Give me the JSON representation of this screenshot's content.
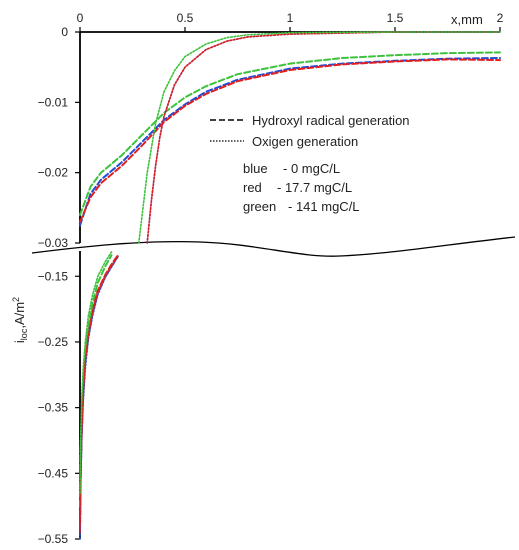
{
  "chart_data": {
    "type": "line",
    "title": "",
    "xlabel": "x,mm",
    "ylabel_main": "i",
    "ylabel_sub": "loc",
    "ylabel_tail": ",A/m",
    "ylabel_sup": "2",
    "x_ticks": [
      "0",
      "0.5",
      "1",
      "1.5",
      "2"
    ],
    "y_ticks_upper": [
      "0",
      "−0.01",
      "−0.02",
      "−0.03"
    ],
    "y_ticks_lower": [
      "−0.15",
      "−0.25",
      "−0.35",
      "−0.45",
      "−0.55"
    ],
    "xlim": [
      0,
      2
    ],
    "ylim_upper": [
      -0.03,
      0
    ],
    "ylim_lower": [
      -0.55,
      -0.11
    ],
    "axis_break": true,
    "legend": {
      "position": "middle-right",
      "styles": [
        {
          "dash": "dashed",
          "label": "Hydroxyl radical generation"
        },
        {
          "dash": "dotted",
          "label": "Oxigen generation"
        }
      ],
      "colors": [
        {
          "label": "blue",
          "desc": "- 0 mgC/L"
        },
        {
          "label": "red",
          "desc": "- 17.7 mgC/L"
        },
        {
          "label": "green",
          "desc": "- 141 mgC/L"
        }
      ]
    },
    "series": [
      {
        "color": "#1f4fd6",
        "style": "dashed",
        "x": [
          0,
          0.05,
          0.1,
          0.2,
          0.3,
          0.4,
          0.5,
          0.6,
          0.75,
          1.0,
          1.25,
          1.5,
          1.75,
          2.0
        ],
        "y": [
          -0.0275,
          -0.023,
          -0.021,
          -0.0185,
          -0.0155,
          -0.0125,
          -0.0103,
          -0.0085,
          -0.0068,
          -0.0052,
          -0.0045,
          -0.0041,
          -0.0038,
          -0.0037
        ]
      },
      {
        "color": "#e02020",
        "style": "dashed",
        "x": [
          0,
          0.05,
          0.1,
          0.2,
          0.3,
          0.4,
          0.5,
          0.6,
          0.75,
          1.0,
          1.25,
          1.5,
          1.75,
          2.0
        ],
        "y": [
          -0.027,
          -0.0235,
          -0.0215,
          -0.019,
          -0.016,
          -0.0128,
          -0.0105,
          -0.0088,
          -0.007,
          -0.0054,
          -0.0046,
          -0.0042,
          -0.0039,
          -0.004
        ]
      },
      {
        "color": "#3cc23c",
        "style": "dashed",
        "x": [
          0,
          0.05,
          0.1,
          0.2,
          0.3,
          0.4,
          0.5,
          0.6,
          0.75,
          1.0,
          1.25,
          1.5,
          1.75,
          2.0
        ],
        "y": [
          -0.026,
          -0.022,
          -0.02,
          -0.0175,
          -0.0145,
          -0.0115,
          -0.0093,
          -0.0077,
          -0.006,
          -0.0045,
          -0.0037,
          -0.0033,
          -0.003,
          -0.0029
        ]
      },
      {
        "color": "#1f4fd6",
        "style": "dotted",
        "x": [
          0.32,
          0.34,
          0.36,
          0.38,
          0.4,
          0.45,
          0.5,
          0.6,
          0.7,
          0.8,
          1.0,
          1.5,
          2.0
        ],
        "y": [
          -0.03,
          -0.024,
          -0.019,
          -0.015,
          -0.012,
          -0.0075,
          -0.005,
          -0.0025,
          -0.0013,
          -0.0007,
          -0.0003,
          0,
          0
        ]
      },
      {
        "color": "#e02020",
        "style": "dotted",
        "x": [
          0.32,
          0.34,
          0.36,
          0.38,
          0.4,
          0.45,
          0.5,
          0.6,
          0.7,
          0.8,
          1.0,
          1.5,
          2.0
        ],
        "y": [
          -0.03,
          -0.024,
          -0.019,
          -0.015,
          -0.012,
          -0.0075,
          -0.005,
          -0.0025,
          -0.0013,
          -0.0007,
          -0.0003,
          0,
          0
        ]
      },
      {
        "color": "#3cc23c",
        "style": "dotted",
        "x": [
          0.28,
          0.3,
          0.32,
          0.34,
          0.36,
          0.4,
          0.45,
          0.5,
          0.6,
          0.7,
          0.8,
          1.0,
          1.5,
          2.0
        ],
        "y": [
          -0.03,
          -0.025,
          -0.02,
          -0.0165,
          -0.013,
          -0.0085,
          -0.0055,
          -0.0035,
          -0.0017,
          -0.0008,
          -0.0004,
          -0.0001,
          0,
          0
        ]
      }
    ],
    "lower_series": [
      {
        "color": "#1f4fd6",
        "style": "dashed",
        "x": [
          0,
          0.003,
          0.008,
          0.015,
          0.025,
          0.04,
          0.06,
          0.085,
          0.12,
          0.15,
          0.18
        ],
        "y": [
          -0.54,
          -0.46,
          -0.39,
          -0.33,
          -0.28,
          -0.24,
          -0.205,
          -0.175,
          -0.15,
          -0.135,
          -0.12
        ]
      },
      {
        "color": "#e02020",
        "style": "dashed",
        "x": [
          0,
          0.003,
          0.008,
          0.015,
          0.025,
          0.04,
          0.06,
          0.085,
          0.12,
          0.15,
          0.18
        ],
        "y": [
          -0.53,
          -0.455,
          -0.385,
          -0.325,
          -0.275,
          -0.235,
          -0.2,
          -0.172,
          -0.148,
          -0.132,
          -0.118
        ]
      },
      {
        "color": "#3cc23c",
        "style": "dashed",
        "x": [
          0,
          0.003,
          0.008,
          0.015,
          0.025,
          0.04,
          0.06,
          0.085,
          0.12,
          0.15
        ],
        "y": [
          -0.5,
          -0.42,
          -0.36,
          -0.31,
          -0.265,
          -0.225,
          -0.19,
          -0.16,
          -0.135,
          -0.118
        ]
      },
      {
        "color": "#1f4fd6",
        "style": "dotted",
        "x": [
          0,
          0.003,
          0.008,
          0.015,
          0.025,
          0.04,
          0.06,
          0.085,
          0.12,
          0.15,
          0.18
        ],
        "y": [
          -0.55,
          -0.47,
          -0.4,
          -0.34,
          -0.29,
          -0.245,
          -0.21,
          -0.178,
          -0.152,
          -0.136,
          -0.12
        ]
      },
      {
        "color": "#e02020",
        "style": "dotted",
        "x": [
          0,
          0.003,
          0.008,
          0.015,
          0.025,
          0.04,
          0.06,
          0.085,
          0.12,
          0.15,
          0.18
        ],
        "y": [
          -0.54,
          -0.46,
          -0.39,
          -0.33,
          -0.28,
          -0.24,
          -0.205,
          -0.175,
          -0.15,
          -0.134,
          -0.119
        ]
      },
      {
        "color": "#3cc23c",
        "style": "dotted",
        "x": [
          0,
          0.003,
          0.008,
          0.015,
          0.025,
          0.04,
          0.06,
          0.085,
          0.12,
          0.15
        ],
        "y": [
          -0.48,
          -0.4,
          -0.34,
          -0.29,
          -0.25,
          -0.21,
          -0.178,
          -0.15,
          -0.128,
          -0.113
        ]
      }
    ]
  }
}
